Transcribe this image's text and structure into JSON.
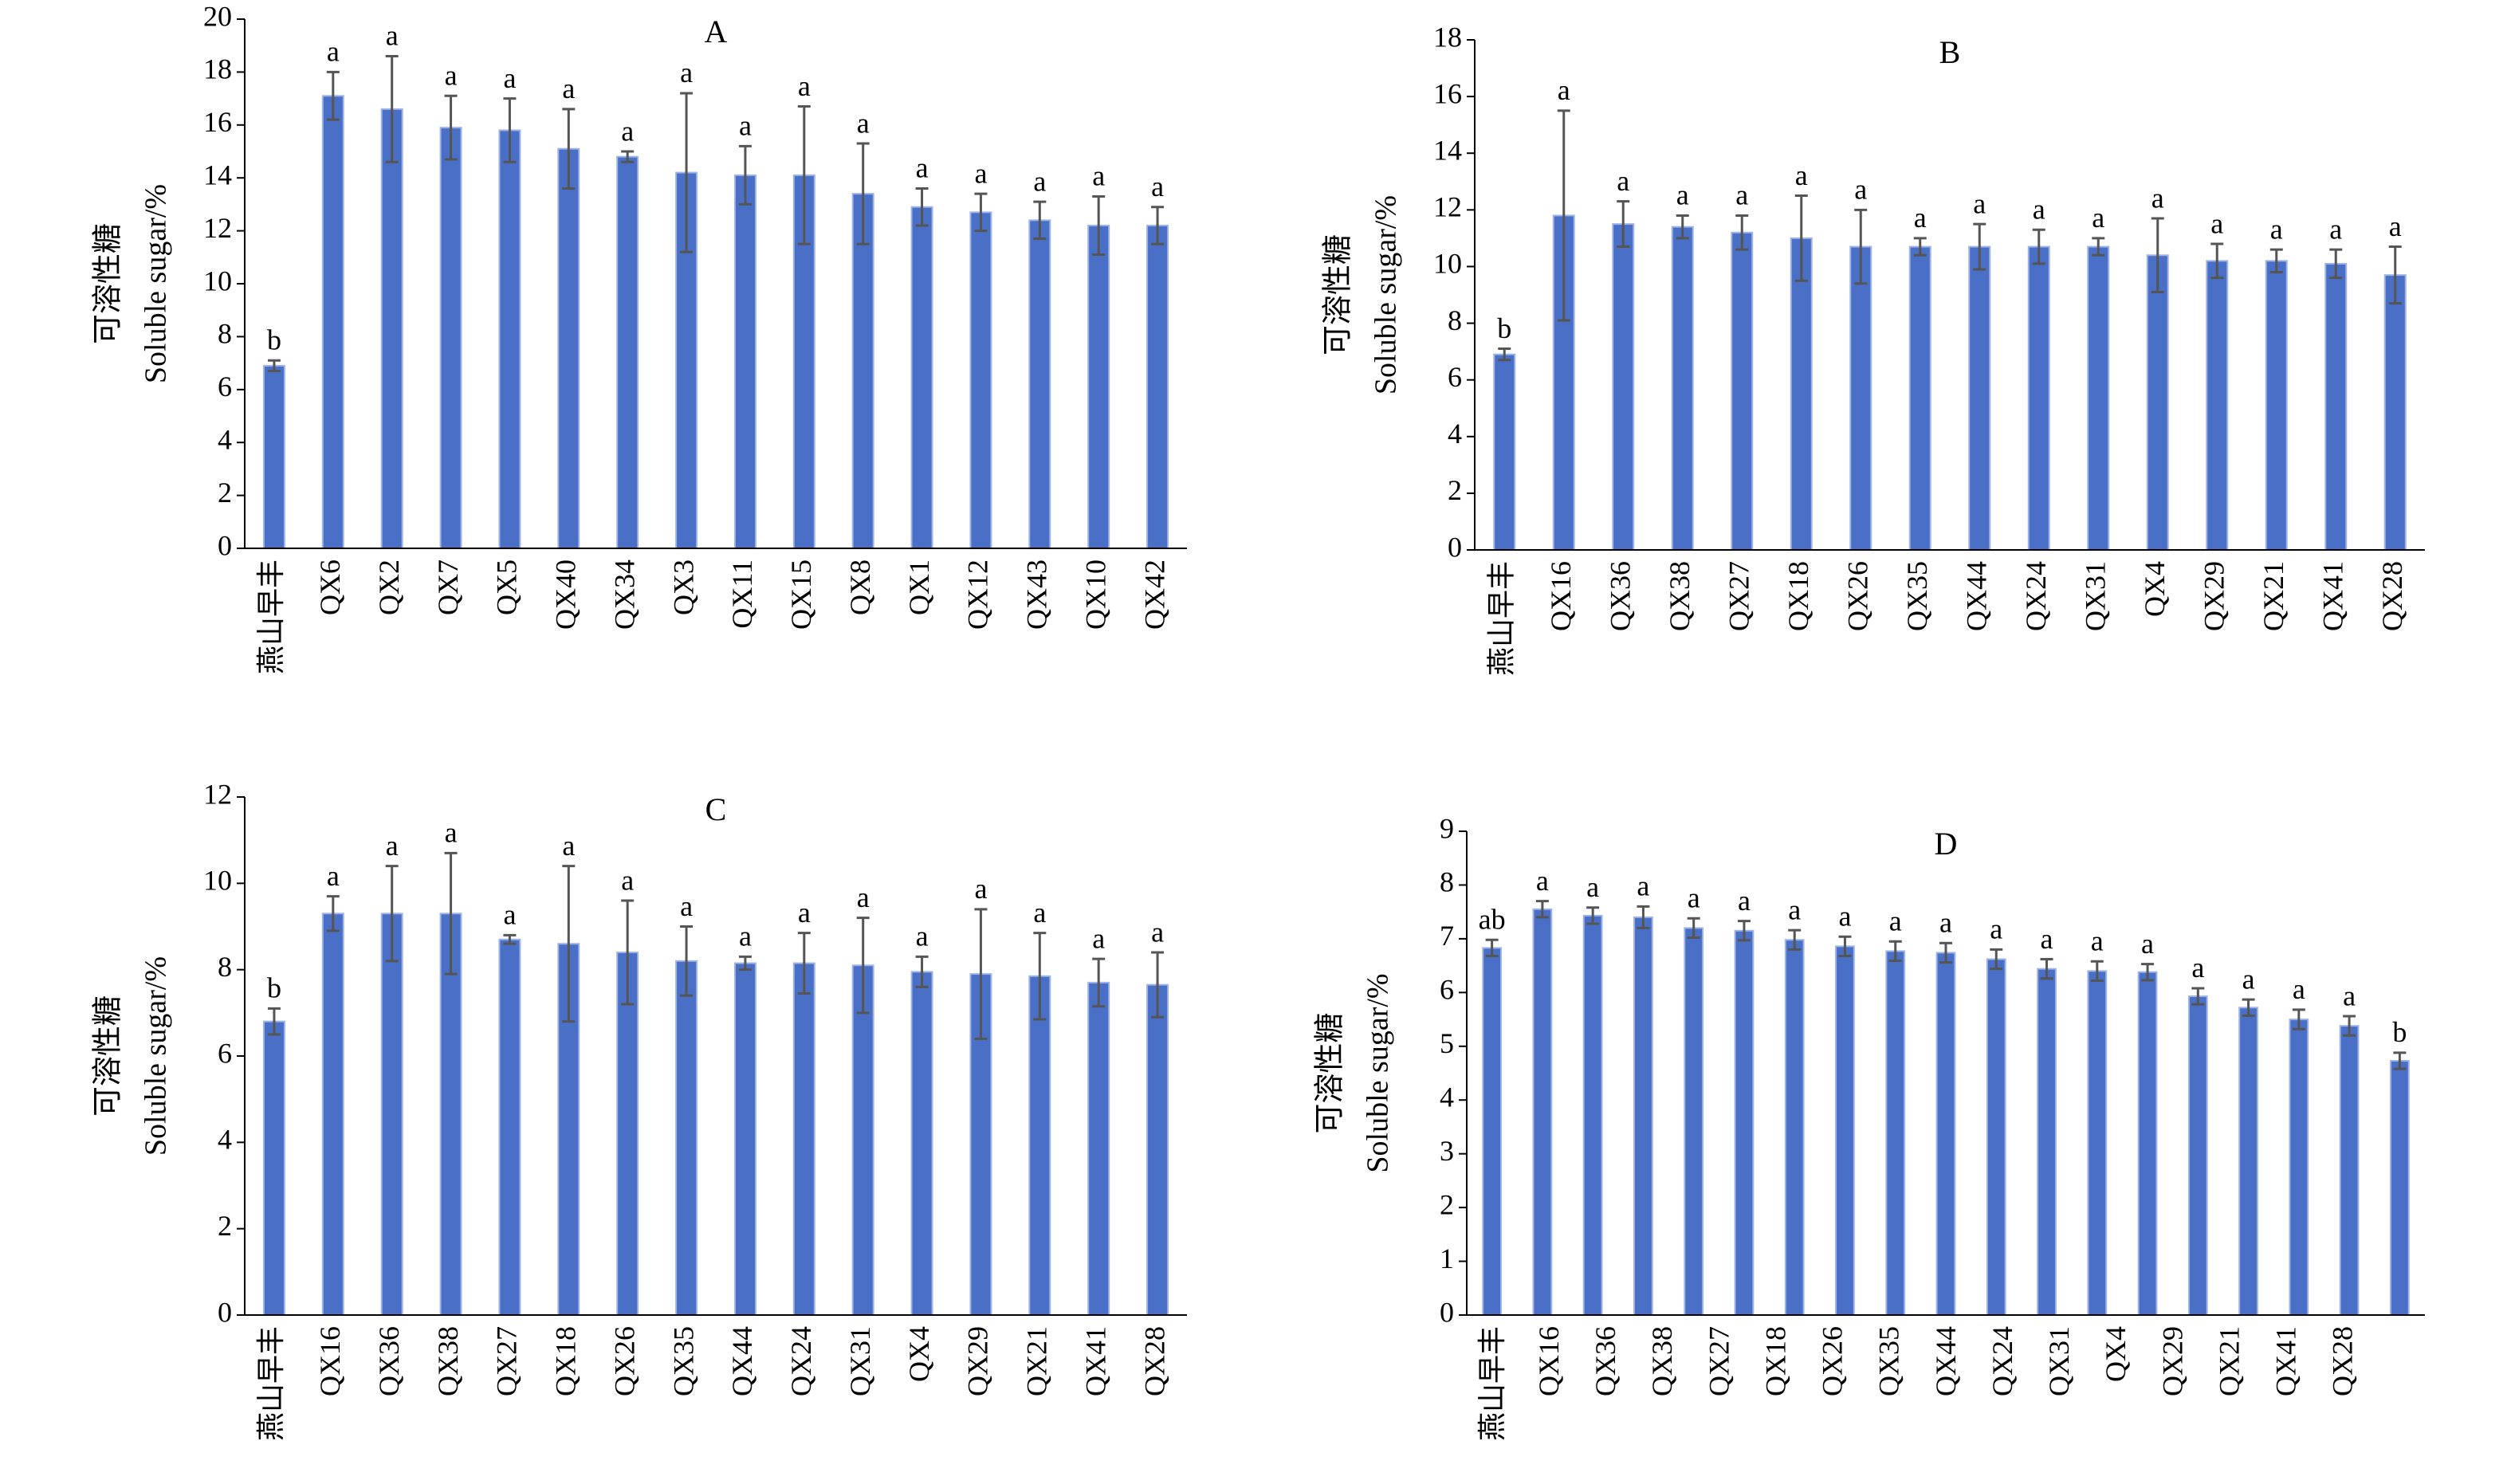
{
  "chart_data": [
    {
      "type": "bar",
      "title": "A",
      "ylabel": [
        "可溶性糖",
        "Soluble sugar/%"
      ],
      "color": "#4a6fc6",
      "categories": [
        "燕山早丰",
        "QX6",
        "QX2",
        "QX7",
        "QX5",
        "QX40",
        "QX34",
        "QX3",
        "QX11",
        "QX15",
        "QX8",
        "QX1",
        "QX12",
        "QX43",
        "QX10",
        "QX42"
      ],
      "values": [
        6.9,
        17.1,
        16.6,
        15.9,
        15.8,
        15.1,
        14.8,
        14.2,
        14.1,
        14.1,
        13.4,
        12.9,
        12.7,
        12.4,
        12.2,
        12.2
      ],
      "errors": [
        0.2,
        0.9,
        2.0,
        1.2,
        1.2,
        1.5,
        0.2,
        3.0,
        1.1,
        2.6,
        1.9,
        0.7,
        0.7,
        0.7,
        1.1,
        0.7
      ],
      "letters": [
        "b",
        "a",
        "a",
        "a",
        "a",
        "a",
        "a",
        "a",
        "a",
        "a",
        "a",
        "a",
        "a",
        "a",
        "a",
        "a"
      ],
      "ylim": [
        0,
        20
      ],
      "yticks": [
        0,
        2,
        4,
        6,
        8,
        10,
        12,
        14,
        16,
        18,
        20
      ]
    },
    {
      "type": "bar",
      "title": "B",
      "ylabel": [
        "可溶性糖",
        "Soluble sugar/%"
      ],
      "color": "#4a6fc6",
      "categories": [
        "燕山早丰",
        "QX16",
        "QX36",
        "QX38",
        "QX27",
        "QX18",
        "QX26",
        "QX35",
        "QX44",
        "QX24",
        "QX31",
        "QX4",
        "QX29",
        "QX21",
        "QX41",
        "QX28"
      ],
      "values": [
        6.9,
        11.8,
        11.5,
        11.4,
        11.2,
        11.0,
        10.7,
        10.7,
        10.7,
        10.7,
        10.7,
        10.4,
        10.2,
        10.2,
        10.1,
        9.7
      ],
      "errors": [
        0.2,
        3.7,
        0.8,
        0.4,
        0.6,
        1.5,
        1.3,
        0.3,
        0.8,
        0.6,
        0.3,
        1.3,
        0.6,
        0.4,
        0.5,
        1.0
      ],
      "letters": [
        "b",
        "a",
        "a",
        "a",
        "a",
        "a",
        "a",
        "a",
        "a",
        "a",
        "a",
        "a",
        "a",
        "a",
        "a",
        "a"
      ],
      "ylim": [
        0,
        18
      ],
      "yticks": [
        0,
        2,
        4,
        6,
        8,
        10,
        12,
        14,
        16,
        18
      ]
    },
    {
      "type": "bar",
      "title": "C",
      "ylabel": [
        "可溶性糖",
        "Soluble sugar/%"
      ],
      "color": "#4a6fc6",
      "categories": [
        "燕山早丰",
        "QX16",
        "QX36",
        "QX38",
        "QX27",
        "QX18",
        "QX26",
        "QX35",
        "QX44",
        "QX24",
        "QX31",
        "QX4",
        "QX29",
        "QX21",
        "QX41",
        "QX28"
      ],
      "values": [
        6.8,
        9.3,
        9.3,
        9.3,
        8.7,
        8.6,
        8.4,
        8.2,
        8.15,
        8.15,
        8.1,
        7.95,
        7.9,
        7.85,
        7.7,
        7.65
      ],
      "errors": [
        0.3,
        0.4,
        1.1,
        1.4,
        0.1,
        1.8,
        1.2,
        0.8,
        0.15,
        0.7,
        1.1,
        0.35,
        1.5,
        1.0,
        0.55,
        0.75
      ],
      "letters": [
        "b",
        "a",
        "a",
        "a",
        "a",
        "a",
        "a",
        "a",
        "a",
        "a",
        "a",
        "a",
        "a",
        "a",
        "a",
        "a"
      ],
      "ylim": [
        0,
        12
      ],
      "yticks": [
        0,
        2,
        4,
        6,
        8,
        10,
        12
      ]
    },
    {
      "type": "bar",
      "title": "D",
      "ylabel": [
        "可溶性糖",
        "Soluble sugar/%"
      ],
      "color": "#4a6fc6",
      "categories": [
        "燕山早丰",
        "QX16",
        "QX36",
        "QX38",
        "QX27",
        "QX18",
        "QX26",
        "QX35",
        "QX44",
        "QX24",
        "QX31",
        "QX4",
        "QX29",
        "QX21",
        "QX41",
        "QX28",
        null,
        null,
        null
      ],
      "values": [
        6.83,
        7.55,
        7.43,
        7.4,
        7.2,
        7.15,
        6.98,
        6.86,
        6.77,
        6.74,
        6.62,
        6.44,
        6.4,
        6.38,
        5.93,
        5.72,
        5.5,
        5.38,
        4.73
      ],
      "errors": [
        0.15,
        0.15,
        0.15,
        0.2,
        0.18,
        0.18,
        0.18,
        0.18,
        0.18,
        0.18,
        0.18,
        0.18,
        0.18,
        0.15,
        0.15,
        0.15,
        0.18,
        0.18,
        0.15
      ],
      "letters": [
        "ab",
        "a",
        "a",
        "a",
        "a",
        "a",
        "a",
        "a",
        "a",
        "a",
        "a",
        "a",
        "a",
        "a",
        "a",
        "a",
        "a",
        "a",
        "b"
      ],
      "ylim": [
        0,
        9
      ],
      "yticks": [
        0,
        1,
        2,
        3,
        4,
        5,
        6,
        7,
        8,
        9
      ]
    }
  ]
}
